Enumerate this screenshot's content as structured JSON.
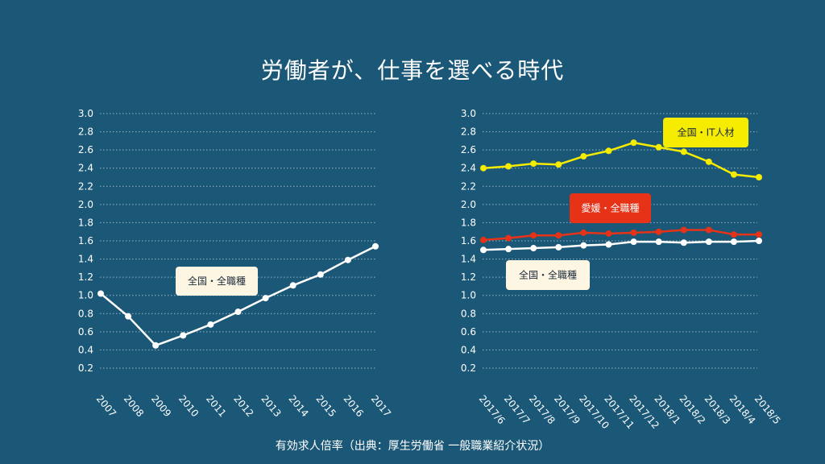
{
  "title": "労働者が、仕事を選べる時代",
  "source": "有効求人倍率（出典：厚生労働省 一般職業紹介状況）",
  "colors": {
    "background": "#1b5878",
    "white_series": "#ffffff",
    "yellow_series": "#f5ec00",
    "red_series": "#e63217",
    "label_bg_cream": "#fdf6e3"
  },
  "chart_data": [
    {
      "type": "line",
      "title": "",
      "xlabel": "",
      "ylabel": "",
      "ylim": [
        0.2,
        3.0
      ],
      "yticks": [
        "0.2",
        "0.4",
        "0.6",
        "0.8",
        "1.0",
        "1.2",
        "1.4",
        "1.6",
        "1.8",
        "2.0",
        "2.2",
        "2.4",
        "2.6",
        "2.8",
        "3.0"
      ],
      "grid": true,
      "categories": [
        "2007",
        "2008",
        "2009",
        "2010",
        "2011",
        "2012",
        "2013",
        "2014",
        "2015",
        "2016",
        "2017"
      ],
      "series": [
        {
          "name": "全国・全職種",
          "color": "#ffffff",
          "values": [
            1.02,
            0.77,
            0.45,
            0.56,
            0.68,
            0.82,
            0.97,
            1.11,
            1.23,
            1.39,
            1.54
          ]
        }
      ]
    },
    {
      "type": "line",
      "title": "",
      "xlabel": "",
      "ylabel": "",
      "ylim": [
        0.2,
        3.0
      ],
      "yticks": [
        "0.2",
        "0.4",
        "0.6",
        "0.8",
        "1.0",
        "1.2",
        "1.4",
        "1.6",
        "1.8",
        "2.0",
        "2.2",
        "2.4",
        "2.6",
        "2.8",
        "3.0"
      ],
      "grid": true,
      "categories": [
        "2017/6",
        "2017/7",
        "2017/8",
        "2017/9",
        "2017/10",
        "2017/11",
        "2017/12",
        "2018/1",
        "2018/2",
        "2018/3",
        "2018/4",
        "2018/5"
      ],
      "series": [
        {
          "name": "全国・IT人材",
          "color": "#f5ec00",
          "label_bg": "#f5ec00",
          "values": [
            2.4,
            2.42,
            2.45,
            2.44,
            2.53,
            2.59,
            2.68,
            2.63,
            2.58,
            2.47,
            2.33,
            2.3
          ]
        },
        {
          "name": "愛媛・全職種",
          "color": "#e63217",
          "label_bg": "#e63217",
          "values": [
            1.61,
            1.63,
            1.66,
            1.66,
            1.69,
            1.68,
            1.69,
            1.7,
            1.72,
            1.72,
            1.67,
            1.67
          ]
        },
        {
          "name": "全国・全職種",
          "color": "#ffffff",
          "label_bg": "#fdf6e3",
          "values": [
            1.5,
            1.51,
            1.52,
            1.53,
            1.55,
            1.56,
            1.59,
            1.59,
            1.58,
            1.59,
            1.59,
            1.6
          ]
        }
      ]
    }
  ]
}
